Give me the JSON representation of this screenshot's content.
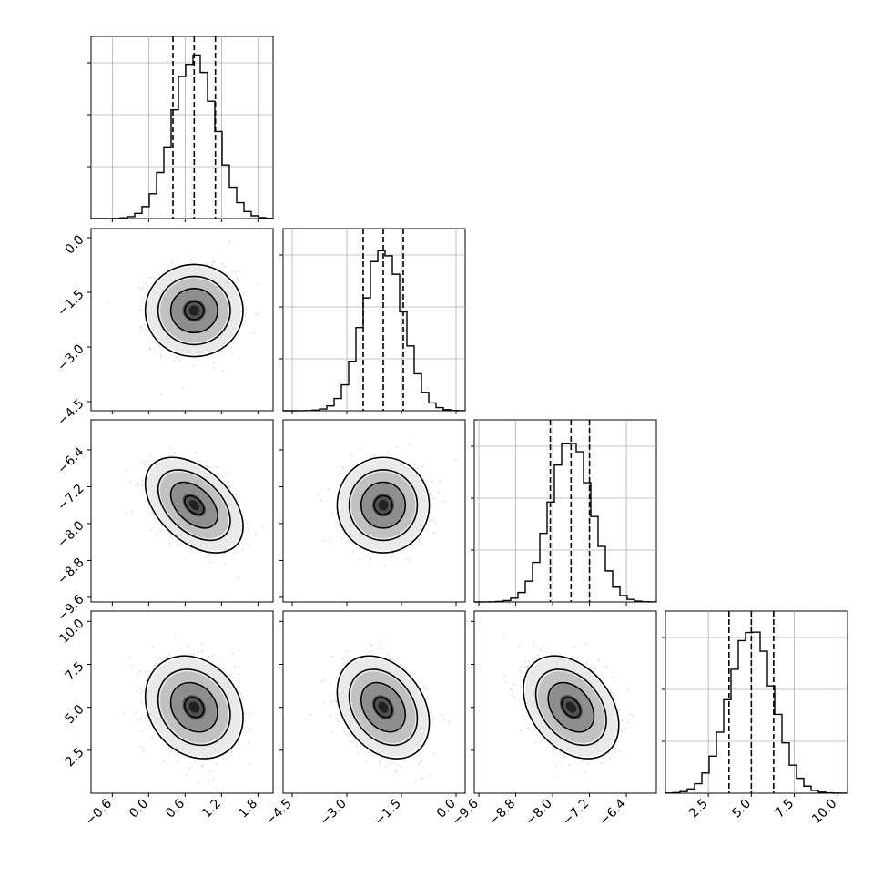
{
  "chart_data": {
    "type": "corner",
    "title": "",
    "parameters": [
      {
        "label": "",
        "range": [
          -0.95,
          2.05
        ],
        "ticks": [
          "−0.6",
          "0.0",
          "0.6",
          "1.2",
          "1.8"
        ],
        "tick_values": [
          -0.6,
          0.0,
          0.6,
          1.2,
          1.8
        ],
        "median": 0.75,
        "quantile_16": 0.4,
        "quantile_84": 1.1,
        "sigma": 0.35
      },
      {
        "label": "",
        "range": [
          -4.75,
          0.25
        ],
        "ticks": [
          "−4.5",
          "−3.0",
          "−1.5",
          "0.0"
        ],
        "tick_values": [
          -4.5,
          -3.0,
          -1.5,
          0.0
        ],
        "median": -2.0,
        "quantile_16": -2.55,
        "quantile_84": -1.45,
        "sigma": 0.55
      },
      {
        "label": "",
        "range": [
          -9.7,
          -5.75
        ],
        "ticks": [
          "−9.6",
          "−8.8",
          "−8.0",
          "−7.2",
          "−6.4"
        ],
        "tick_values": [
          -9.6,
          -8.8,
          -8.0,
          -7.2,
          -6.4
        ],
        "median": -7.6,
        "quantile_16": -8.05,
        "quantile_84": -7.2,
        "sigma": 0.45
      },
      {
        "label": "",
        "range": [
          0.0,
          10.6
        ],
        "ticks": [
          "2.5",
          "5.0",
          "7.5",
          "10.0"
        ],
        "tick_values": [
          2.5,
          5.0,
          7.5,
          10.0
        ],
        "median": 5.0,
        "quantile_16": 3.7,
        "quantile_84": 6.3,
        "sigma": 1.3
      }
    ],
    "correlations": {
      "1-0": 0.0,
      "2-0": -0.45,
      "2-1": 0.0,
      "3-0": -0.2,
      "3-1": -0.3,
      "3-2": -0.35
    },
    "grid": true,
    "colors": {
      "line": "#000000",
      "grid": "#b0b0b0",
      "scatter": "#8c8c8c"
    }
  }
}
